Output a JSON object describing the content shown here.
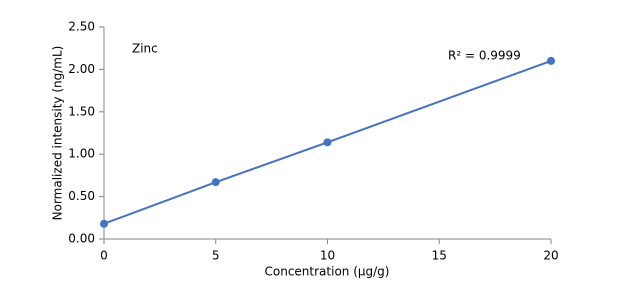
{
  "chart_data": {
    "type": "scatter-line",
    "x_label": "Concentration (µg/g)",
    "y_label": "Normalized intensity (ng/mL)",
    "annotations": [
      "Zinc",
      "R² = 0.9999"
    ],
    "x": [
      0,
      5,
      10,
      20
    ],
    "series": [
      {
        "name": "Zinc",
        "color": "#4472c4",
        "values": [
          0.18,
          0.67,
          1.14,
          2.1
        ]
      }
    ],
    "xlim": [
      0,
      20
    ],
    "xticks": [
      0,
      5,
      10,
      15,
      20
    ],
    "ylim": [
      0,
      2.5
    ],
    "yticks": [
      {
        "value": 0,
        "label": "0.00"
      },
      {
        "value": 0.5,
        "label": "0.50"
      },
      {
        "value": 1,
        "label": "1.00"
      },
      {
        "value": 1.5,
        "label": "1.50"
      },
      {
        "value": 2,
        "label": "2.00"
      },
      {
        "value": 2.5,
        "label": "2.50"
      }
    ],
    "grid": false
  }
}
